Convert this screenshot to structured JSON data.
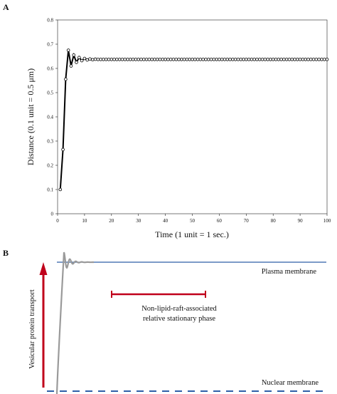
{
  "panels": {
    "a_letter": "A",
    "b_letter": "B"
  },
  "chart_data": [
    {
      "type": "line",
      "panel": "A",
      "xlabel": "Time (1 unit = 1 sec.)",
      "ylabel": "Distance (0.1 unit = 0.5 μm)",
      "xlim": [
        0,
        100
      ],
      "ylim": [
        0,
        0.8
      ],
      "x_ticks": [
        0,
        10,
        20,
        30,
        40,
        50,
        60,
        70,
        80,
        90,
        100
      ],
      "y_ticks": [
        0,
        0.1,
        0.2,
        0.3,
        0.4,
        0.5,
        0.6,
        0.7,
        0.8
      ],
      "y_tick_labels": [
        "0",
        "0.1",
        "0.2",
        "0.3",
        "0.4",
        "0.5",
        "0.6",
        "0.7",
        "0.8"
      ],
      "grid": false,
      "line_color": "#000000",
      "marker": "open-circle",
      "x": [
        1,
        2,
        3,
        4,
        5,
        6,
        7,
        8,
        9,
        10,
        11,
        12,
        13,
        14,
        15,
        16,
        17,
        18,
        19,
        20,
        21,
        22,
        23,
        24,
        25,
        26,
        27,
        28,
        29,
        30,
        31,
        32,
        33,
        34,
        35,
        36,
        37,
        38,
        39,
        40,
        41,
        42,
        43,
        44,
        45,
        46,
        47,
        48,
        49,
        50,
        51,
        52,
        53,
        54,
        55,
        56,
        57,
        58,
        59,
        60,
        61,
        62,
        63,
        64,
        65,
        66,
        67,
        68,
        69,
        70,
        71,
        72,
        73,
        74,
        75,
        76,
        77,
        78,
        79,
        80,
        81,
        82,
        83,
        84,
        85,
        86,
        87,
        88,
        89,
        90,
        91,
        92,
        93,
        94,
        95,
        96,
        97,
        98,
        99,
        100
      ],
      "y": [
        0.1,
        0.265,
        0.555,
        0.675,
        0.61,
        0.655,
        0.625,
        0.645,
        0.632,
        0.641,
        0.635,
        0.639,
        0.636,
        0.638,
        0.637,
        0.637,
        0.637,
        0.637,
        0.637,
        0.637,
        0.637,
        0.637,
        0.637,
        0.637,
        0.637,
        0.637,
        0.637,
        0.637,
        0.637,
        0.637,
        0.637,
        0.637,
        0.637,
        0.637,
        0.637,
        0.637,
        0.637,
        0.637,
        0.637,
        0.637,
        0.637,
        0.637,
        0.637,
        0.637,
        0.637,
        0.637,
        0.637,
        0.637,
        0.637,
        0.637,
        0.637,
        0.637,
        0.637,
        0.637,
        0.637,
        0.637,
        0.637,
        0.637,
        0.637,
        0.637,
        0.637,
        0.637,
        0.637,
        0.637,
        0.637,
        0.637,
        0.637,
        0.637,
        0.637,
        0.637,
        0.637,
        0.637,
        0.637,
        0.637,
        0.637,
        0.637,
        0.637,
        0.637,
        0.637,
        0.637,
        0.637,
        0.637,
        0.637,
        0.637,
        0.637,
        0.637,
        0.637,
        0.637,
        0.637,
        0.637,
        0.637,
        0.637,
        0.637,
        0.637,
        0.637,
        0.637,
        0.637,
        0.637,
        0.637,
        0.637
      ]
    },
    {
      "type": "diagram",
      "panel": "B",
      "vertical_label": "Vesicular protein transport",
      "plasma_membrane_label": "Plasma membrane",
      "nuclear_membrane_label": "Nuclear membrane",
      "phase_label_line1": "Non-lipid-raft-associated",
      "phase_label_line2": "relative stationary phase",
      "colors": {
        "membrane": "#2f5fa8",
        "arrow": "#c0001b",
        "phase_bar": "#c0001b",
        "curve": "#9a9a9a"
      }
    }
  ]
}
